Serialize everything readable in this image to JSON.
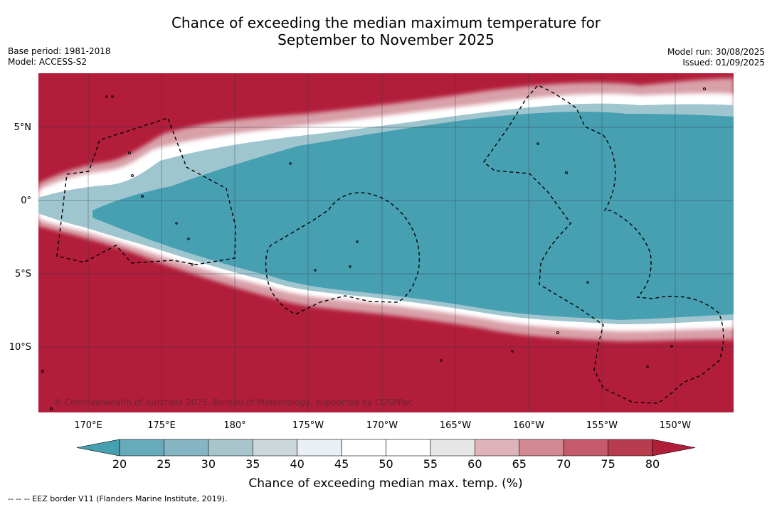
{
  "title_line1": "Chance of exceeding the median maximum temperature for",
  "title_line2": "September to November 2025",
  "base_period": "Base period: 1981-2018",
  "model": "Model: ACCESS-S2",
  "model_run": "Model run: 30/08/2025",
  "issued": "Issued: 01/09/2025",
  "map": {
    "lat_labels": [
      "5°N",
      "0°",
      "5°S",
      "10°S"
    ],
    "lon_labels": [
      "170°E",
      "175°E",
      "180°",
      "175°W",
      "170°W",
      "165°W",
      "160°W",
      "155°W",
      "150°W"
    ],
    "copyright": "© Commonwealth of Australia 2025, Bureau of Meteorology, supported by COSPPac",
    "colors": {
      "above": "#b21d3a",
      "below": "#47a0b2",
      "neutral": "#ffffff",
      "grid": "#2b3a4a",
      "eez": "#000000"
    }
  },
  "colorbar": {
    "ticks": [
      "20",
      "25",
      "30",
      "35",
      "40",
      "45",
      "50",
      "55",
      "60",
      "65",
      "70",
      "75",
      "80"
    ],
    "colors": [
      "#47a0b2",
      "#67aab9",
      "#86b6c3",
      "#a9c5cc",
      "#ccd7dc",
      "#eaf0f3",
      "#ffffff",
      "#ffffff",
      "#e6e6e6",
      "#deb4ba",
      "#d18890",
      "#c55b6a",
      "#b73c4e",
      "#b21d3a"
    ],
    "label": "Chance of exceeding median max. temp. (%)"
  },
  "footnote": "-- -- -- EEZ border V11 (Flanders Marine Institute, 2019)."
}
